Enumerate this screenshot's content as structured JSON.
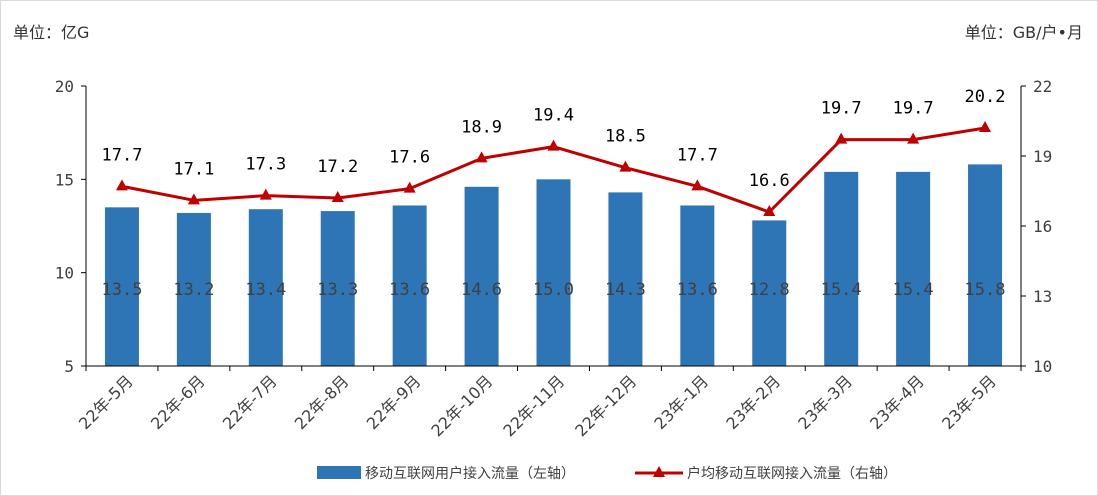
{
  "left_unit": "单位：亿G",
  "right_unit": "单位：GB/户•月",
  "legend": {
    "bar_label": "移动互联网用户接入流量（左轴）",
    "line_label": "户均移动互联网接入流量（右轴）"
  },
  "colors": {
    "bar": "#2e75b6",
    "line": "#c00000",
    "axis": "#000000",
    "text": "#404040"
  },
  "chart_data": {
    "type": "bar+line",
    "categories": [
      "22年-5月",
      "22年-6月",
      "22年-7月",
      "22年-8月",
      "22年-9月",
      "22年-10月",
      "22年-11月",
      "22年-12月",
      "23年-1月",
      "23年-2月",
      "23年-3月",
      "23年-4月",
      "23年-5月"
    ],
    "series": [
      {
        "name": "移动互联网用户接入流量（左轴）",
        "type": "bar",
        "axis": "left",
        "values": [
          13.5,
          13.2,
          13.4,
          13.3,
          13.6,
          14.6,
          15.0,
          14.3,
          13.6,
          12.8,
          15.4,
          15.4,
          15.8
        ],
        "labels": [
          "13.5",
          "13.2",
          "13.4",
          "13.3",
          "13.6",
          "14.6",
          "15.0",
          "14.3",
          "13.6",
          "12.8",
          "15.4",
          "15.4",
          "15.8"
        ]
      },
      {
        "name": "户均移动互联网接入流量（右轴）",
        "type": "line",
        "axis": "right",
        "marker": "triangle",
        "values": [
          17.7,
          17.1,
          17.3,
          17.2,
          17.6,
          18.9,
          19.4,
          18.5,
          17.7,
          16.6,
          19.7,
          19.7,
          20.2
        ],
        "labels": [
          "17.7",
          "17.1",
          "17.3",
          "17.2",
          "17.6",
          "18.9",
          "19.4",
          "18.5",
          "17.7",
          "16.6",
          "19.7",
          "19.7",
          "20.2"
        ]
      }
    ],
    "y_left": {
      "min": 5,
      "max": 20,
      "ticks": [
        "20",
        "15",
        "10",
        "5"
      ]
    },
    "y_right": {
      "min": 10,
      "max": 22,
      "ticks": [
        "22",
        "19",
        "16",
        "13",
        "10"
      ]
    },
    "grid": false,
    "legend_position": "bottom"
  }
}
